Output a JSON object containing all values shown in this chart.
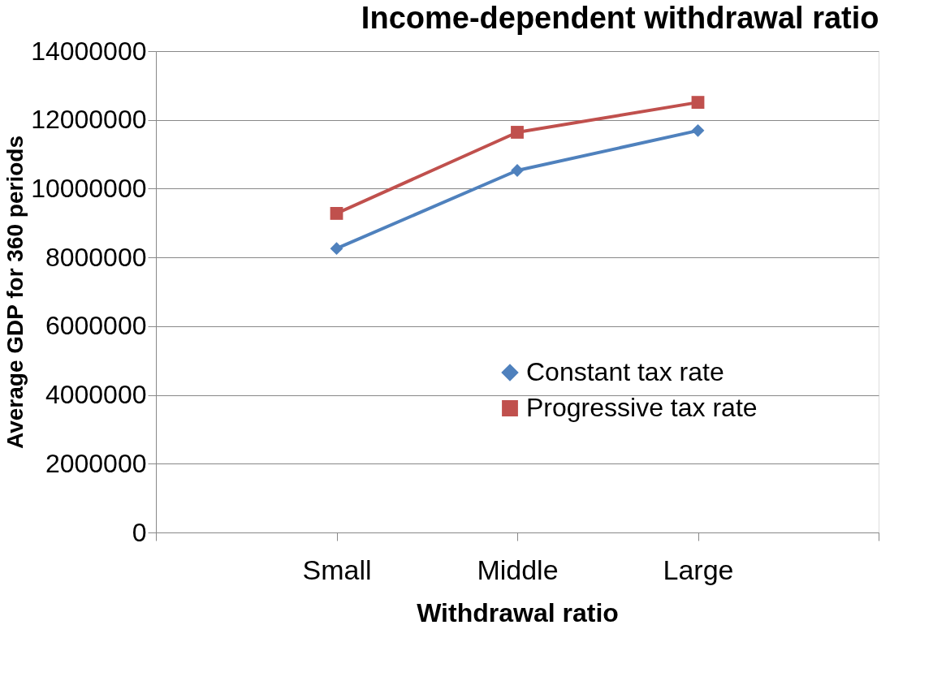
{
  "chart_data": {
    "type": "line",
    "title": "Income-dependent withdrawal ratio",
    "xlabel": "Withdrawal ratio",
    "ylabel": "Average GDP for 360 periods",
    "categories": [
      null,
      "Small",
      "Middle",
      "Large",
      null
    ],
    "series": [
      {
        "name": "Constant tax rate",
        "color": "#4f81bd",
        "marker": "diamond",
        "values": [
          null,
          8260000,
          10530000,
          11690000,
          null
        ]
      },
      {
        "name": "Progressive tax rate",
        "color": "#c0504d",
        "marker": "square",
        "values": [
          null,
          9280000,
          11640000,
          12510000,
          null
        ]
      }
    ],
    "ylim": [
      0,
      14000000
    ],
    "yticks": [
      0,
      2000000,
      4000000,
      6000000,
      8000000,
      10000000,
      12000000,
      14000000
    ],
    "grid": "y",
    "legend": "bottom right"
  }
}
